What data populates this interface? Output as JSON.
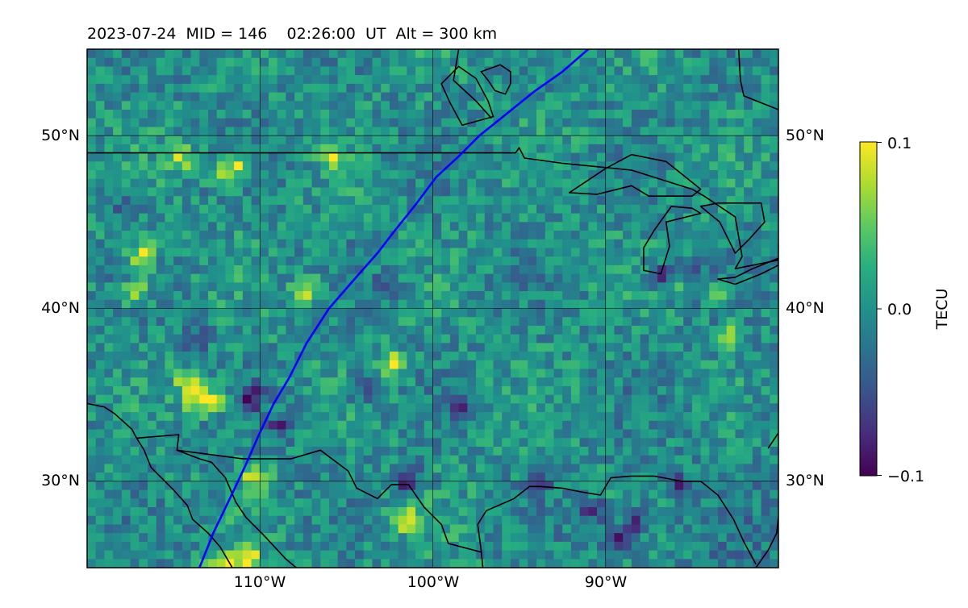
{
  "chart_data": {
    "type": "heatmap",
    "title": "2023-07-24  MID = 146    02:26:00  UT  Alt = 300 km",
    "map": {
      "lon_range": [
        -120,
        -80
      ],
      "lat_range": [
        25,
        55
      ],
      "x_ticks": [
        -110,
        -100,
        -90
      ],
      "x_tick_labels": [
        "110°W",
        "100°W",
        "90°W"
      ],
      "y_ticks": [
        30,
        40,
        50
      ],
      "y_tick_labels": [
        "30°N",
        "40°N",
        "50°N"
      ],
      "grid": true
    },
    "colorbar": {
      "label": "TECU",
      "range": [
        -0.1,
        0.1
      ],
      "ticks": [
        0.1,
        0.0,
        -0.1
      ],
      "tick_labels": [
        "0.1",
        "0.0",
        "−0.1"
      ],
      "colormap": "viridis"
    },
    "field_stats": {
      "background": 0.0,
      "noise_amplitude": 0.03
    },
    "hotspots": [
      {
        "lon": -117,
        "lat": 43.3,
        "value": 0.1
      },
      {
        "lon": -112.5,
        "lat": 25.5,
        "value": 0.1
      },
      {
        "lon": -111.0,
        "lat": 25.8,
        "value": 0.1
      },
      {
        "lon": -101.8,
        "lat": 28.0,
        "value": 0.1
      },
      {
        "lon": -101.7,
        "lat": 30.5,
        "value": -0.1
      },
      {
        "lon": -114.3,
        "lat": 36.0,
        "value": 0.09
      },
      {
        "lon": -114.0,
        "lat": 34.9,
        "value": 0.08
      },
      {
        "lon": -113.0,
        "lat": 34.9,
        "value": 0.08
      },
      {
        "lon": -110.5,
        "lat": 30.4,
        "value": 0.08
      },
      {
        "lon": -102.5,
        "lat": 37.0,
        "value": 0.08
      },
      {
        "lon": -107.5,
        "lat": 41.3,
        "value": 0.08
      },
      {
        "lon": -117.5,
        "lat": 41.2,
        "value": 0.08
      },
      {
        "lon": -111.5,
        "lat": 48.4,
        "value": 0.08
      },
      {
        "lon": -112.5,
        "lat": 48.1,
        "value": 0.07
      },
      {
        "lon": -114.7,
        "lat": 49.0,
        "value": 0.07
      },
      {
        "lon": -106.0,
        "lat": 49.1,
        "value": 0.07
      },
      {
        "lon": -86.0,
        "lat": 41.8,
        "value": 0.09
      },
      {
        "lon": -85.2,
        "lat": 41.7,
        "value": 0.08
      },
      {
        "lon": -84.0,
        "lat": 41.1,
        "value": 0.08
      },
      {
        "lon": -86.7,
        "lat": 42.1,
        "value": -0.09
      },
      {
        "lon": -85.5,
        "lat": 42.0,
        "value": -0.1
      },
      {
        "lon": -84.7,
        "lat": 41.4,
        "value": -0.08
      },
      {
        "lon": -88.5,
        "lat": 28.0,
        "value": -0.08
      },
      {
        "lon": -89.5,
        "lat": 27.0,
        "value": -0.07
      },
      {
        "lon": -91.0,
        "lat": 28.5,
        "value": -0.07
      },
      {
        "lon": -94.0,
        "lat": 30.5,
        "value": -0.06
      },
      {
        "lon": -110.8,
        "lat": 35.0,
        "value": -0.08
      },
      {
        "lon": -109.0,
        "lat": 33.5,
        "value": -0.07
      },
      {
        "lon": -104.5,
        "lat": 35.5,
        "value": -0.06
      },
      {
        "lon": -98.5,
        "lat": 34.5,
        "value": -0.06
      },
      {
        "lon": -83.0,
        "lat": 38.5,
        "value": 0.07
      },
      {
        "lon": -86.0,
        "lat": 30.0,
        "value": -0.06
      },
      {
        "lon": -103.0,
        "lat": 41.5,
        "value": -0.05
      },
      {
        "lon": -114.0,
        "lat": 38.5,
        "value": -0.05
      },
      {
        "lon": -118.0,
        "lat": 46.0,
        "value": -0.05
      }
    ],
    "overlays": {
      "track_color": "#0000ff",
      "track": [
        [
          -113.5,
          25.0
        ],
        [
          -112.7,
          27.0
        ],
        [
          -111.5,
          29.5
        ],
        [
          -110.8,
          31.0
        ],
        [
          -110.1,
          32.6
        ],
        [
          -109.2,
          34.5
        ],
        [
          -108.3,
          36.0
        ],
        [
          -107.3,
          38.0
        ],
        [
          -106.0,
          40.0
        ],
        [
          -104.7,
          41.5
        ],
        [
          -103.2,
          43.2
        ],
        [
          -102.2,
          44.5
        ],
        [
          -101.0,
          46.0
        ],
        [
          -99.8,
          47.6
        ],
        [
          -98.5,
          48.8
        ],
        [
          -97.3,
          50.0
        ],
        [
          -95.8,
          51.2
        ],
        [
          -94.2,
          52.5
        ],
        [
          -92.5,
          53.7
        ],
        [
          -91.0,
          55.0
        ]
      ],
      "coastlines": [
        [
          [
            -120,
            34.5
          ],
          [
            -119,
            34.3
          ],
          [
            -118.4,
            33.9
          ],
          [
            -117.4,
            33.0
          ],
          [
            -117.2,
            32.6
          ],
          [
            -116.7,
            31.8
          ],
          [
            -116.3,
            30.8
          ],
          [
            -115.7,
            30.2
          ],
          [
            -115.0,
            29.5
          ],
          [
            -114.2,
            28.6
          ],
          [
            -113.9,
            27.8
          ],
          [
            -113.0,
            27.0
          ],
          [
            -112.3,
            26.2
          ],
          [
            -111.6,
            25.0
          ]
        ],
        [
          [
            -114.8,
            31.8
          ],
          [
            -113.5,
            31.3
          ],
          [
            -112.8,
            31.1
          ],
          [
            -112.0,
            30.2
          ],
          [
            -111.4,
            28.8
          ],
          [
            -110.8,
            27.9
          ],
          [
            -109.8,
            26.9
          ],
          [
            -108.5,
            25.5
          ],
          [
            -107.9,
            25.0
          ]
        ],
        [
          [
            -97.1,
            25.0
          ],
          [
            -97.2,
            26.0
          ],
          [
            -97.4,
            27.5
          ],
          [
            -96.9,
            28.3
          ],
          [
            -95.3,
            29.0
          ],
          [
            -94.4,
            29.7
          ],
          [
            -93.8,
            29.7
          ],
          [
            -92.5,
            29.6
          ],
          [
            -91.5,
            29.4
          ],
          [
            -90.3,
            29.2
          ],
          [
            -89.7,
            30.2
          ],
          [
            -88.5,
            30.3
          ],
          [
            -87.2,
            30.3
          ],
          [
            -85.6,
            30.0
          ],
          [
            -84.5,
            30.0
          ],
          [
            -83.5,
            29.2
          ],
          [
            -82.6,
            27.8
          ],
          [
            -82.0,
            26.5
          ],
          [
            -81.3,
            25.2
          ]
        ],
        [
          [
            -81.3,
            25.0
          ],
          [
            -80.6,
            26.0
          ],
          [
            -80.1,
            27.0
          ],
          [
            -80.0,
            28.0
          ]
        ],
        [
          [
            -80,
            32.8
          ],
          [
            -80.6,
            31.9
          ]
        ]
      ],
      "borders": [
        [
          [
            -120,
            49.0
          ],
          [
            -95.2,
            49.0
          ],
          [
            -95.0,
            49.3
          ],
          [
            -94.7,
            48.7
          ],
          [
            -92.5,
            48.4
          ],
          [
            -90.5,
            48.2
          ],
          [
            -88.5,
            48.0
          ],
          [
            -85.0,
            46.9
          ],
          [
            -84.3,
            46.5
          ],
          [
            -82.5,
            45.3
          ],
          [
            -82.1,
            43.0
          ],
          [
            -82.5,
            42.3
          ],
          [
            -80.0,
            42.8
          ]
        ],
        [
          [
            -117.1,
            32.5
          ],
          [
            -114.7,
            32.7
          ],
          [
            -114.8,
            31.8
          ],
          [
            -111.0,
            31.3
          ],
          [
            -108.2,
            31.3
          ],
          [
            -106.5,
            31.8
          ],
          [
            -104.9,
            30.6
          ],
          [
            -104.4,
            29.6
          ],
          [
            -103.2,
            29.0
          ],
          [
            -102.4,
            29.8
          ],
          [
            -101.4,
            29.8
          ],
          [
            -100.5,
            28.5
          ],
          [
            -99.5,
            27.5
          ],
          [
            -99.1,
            26.4
          ],
          [
            -97.2,
            25.9
          ]
        ],
        [
          [
            -98.5,
            55.0
          ],
          [
            -98.8,
            53.2
          ],
          [
            -97.5,
            52.0
          ],
          [
            -96.6,
            51.0
          ]
        ]
      ],
      "lakes": [
        [
          [
            -92.1,
            46.7
          ],
          [
            -90.5,
            46.6
          ],
          [
            -88.5,
            47.1
          ],
          [
            -87.5,
            46.5
          ],
          [
            -85.0,
            46.5
          ],
          [
            -84.5,
            46.9
          ],
          [
            -85.0,
            47.3
          ],
          [
            -86.5,
            48.5
          ],
          [
            -88.5,
            48.9
          ],
          [
            -90.0,
            48.1
          ]
        ],
        [
          [
            -87.8,
            42.2
          ],
          [
            -87.8,
            43.5
          ],
          [
            -87.2,
            44.5
          ],
          [
            -86.2,
            45.9
          ],
          [
            -85.0,
            45.8
          ],
          [
            -84.5,
            45.5
          ],
          [
            -86.5,
            45.0
          ],
          [
            -86.3,
            43.6
          ],
          [
            -86.8,
            42.0
          ]
        ],
        [
          [
            -83.5,
            46.1
          ],
          [
            -84.5,
            45.9
          ],
          [
            -83.4,
            45.0
          ],
          [
            -82.5,
            43.2
          ],
          [
            -81.7,
            44.0
          ],
          [
            -80.8,
            45.0
          ],
          [
            -81.0,
            46.1
          ]
        ],
        [
          [
            -83.5,
            41.7
          ],
          [
            -82.5,
            41.8
          ],
          [
            -81.5,
            42.3
          ],
          [
            -80.0,
            42.9
          ],
          [
            -80.0,
            42.5
          ],
          [
            -81.0,
            42.0
          ],
          [
            -82.5,
            41.4
          ]
        ],
        [
          [
            -80,
            43.7
          ],
          [
            -79.3,
            43.3
          ],
          [
            -80,
            43.2
          ]
        ]
      ],
      "hudson_bay": [
        [
          -80,
          51.5
        ],
        [
          -82.0,
          52.3
        ],
        [
          -82.2,
          53.2
        ],
        [
          -82.3,
          55.0
        ]
      ],
      "lake_winnipeg": [
        [
          -98.3,
          50.6
        ],
        [
          -99.0,
          51.9
        ],
        [
          -99.5,
          53.0
        ],
        [
          -98.5,
          54.0
        ],
        [
          -97.5,
          53.3
        ],
        [
          -96.8,
          52.0
        ],
        [
          -96.5,
          51.1
        ]
      ],
      "lake_of_woods": [
        [
          -95.5,
          53.7
        ],
        [
          -96.1,
          54.1
        ],
        [
          -97.2,
          53.7
        ],
        [
          -96.8,
          53.2
        ],
        [
          -96.4,
          52.6
        ],
        [
          -95.8,
          52.4
        ],
        [
          -95.5,
          53.0
        ]
      ]
    }
  }
}
